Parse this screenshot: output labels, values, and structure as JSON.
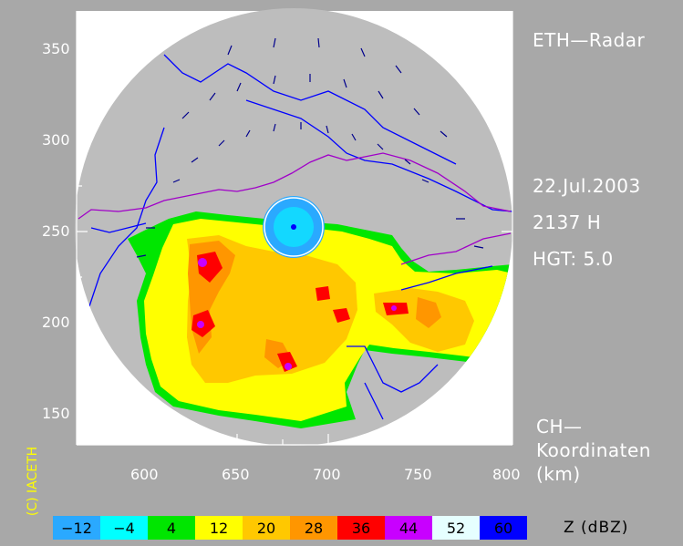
{
  "title": "ETH—Radar",
  "date": "22.Jul.2003",
  "time": "2137 H",
  "height": "HGT: 5.0",
  "coords_label_1": "CH—",
  "coords_label_2": "Koordinaten",
  "coords_label_3": "(km)",
  "credit": "(C) IACETH",
  "x_ticks": [
    "600",
    "650",
    "700",
    "750",
    "800"
  ],
  "y_ticks": [
    "350",
    "300",
    "250",
    "200",
    "150"
  ],
  "legend": {
    "unit": "Z  (dBZ)",
    "items": [
      {
        "label": "−12",
        "color": "#2aa9ff"
      },
      {
        "label": "−4",
        "color": "#00ffff"
      },
      {
        "label": "4",
        "color": "#00e600"
      },
      {
        "label": "12",
        "color": "#ffff00"
      },
      {
        "label": "20",
        "color": "#ffc800"
      },
      {
        "label": "28",
        "color": "#ff9600"
      },
      {
        "label": "36",
        "color": "#ff0000"
      },
      {
        "label": "44",
        "color": "#c800ff"
      },
      {
        "label": "52",
        "color": "#e6ffff"
      },
      {
        "label": "60",
        "color": "#0000ff"
      }
    ]
  },
  "map_extent": {
    "x": [
      560,
      800
    ],
    "y": [
      132,
      373
    ]
  },
  "radar_site": {
    "x": 681,
    "y": 252,
    "range_km": 120
  }
}
